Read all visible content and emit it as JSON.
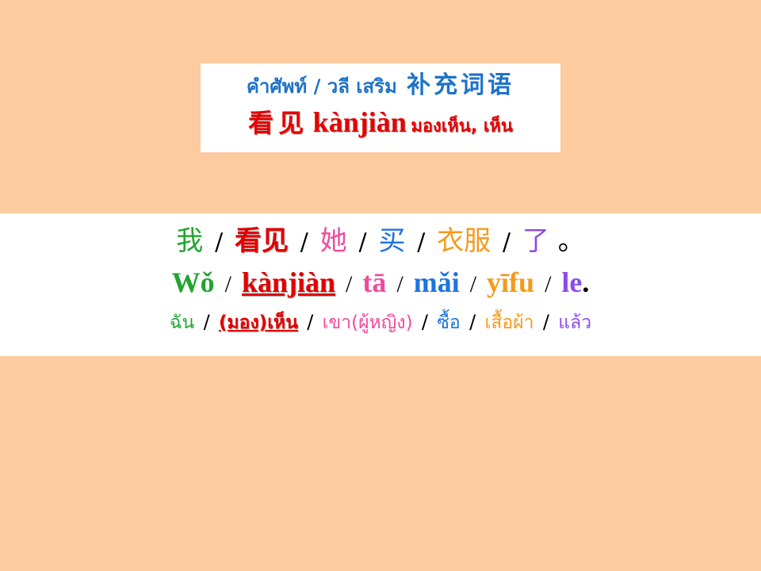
{
  "vocab": {
    "heading_thai": "คำศัพท์ / วลี เสริม",
    "heading_cn": "补充词语",
    "word_cn": "看见",
    "word_pinyin": "kànjiàn",
    "word_thai": "มองเห็น, เห็น"
  },
  "sentence": {
    "separator": "/",
    "hanzi": [
      {
        "text": "我",
        "color": "#22A52E"
      },
      {
        "text": "看见",
        "color": "#E00000"
      },
      {
        "text": "她",
        "color": "#F04A9E"
      },
      {
        "text": "买",
        "color": "#1E73E0"
      },
      {
        "text": "衣服",
        "color": "#F59A1B"
      },
      {
        "text": "了",
        "color": "#8E4BE8"
      }
    ],
    "hanzi_end": "。",
    "pinyin": [
      {
        "text": "Wǒ",
        "color": "#22A52E"
      },
      {
        "text": "kànjiàn",
        "color": "#E00000"
      },
      {
        "text": "tā",
        "color": "#F04A9E"
      },
      {
        "text": "mǎi",
        "color": "#1E73E0"
      },
      {
        "text": "yīfu",
        "color": "#F59A1B"
      },
      {
        "text": "le",
        "color": "#8E4BE8"
      }
    ],
    "pinyin_end": ".",
    "thai": [
      {
        "text": "ฉัน",
        "color": "#22A52E"
      },
      {
        "text": "(มอง)เห็น",
        "color": "#E00000"
      },
      {
        "text": "เขา(ผู้หญิง)",
        "color": "#F04A9E"
      },
      {
        "text": "ซื้อ",
        "color": "#1E73E0"
      },
      {
        "text": "เสื้อผ้า",
        "color": "#F59A1B"
      },
      {
        "text": "แล้ว",
        "color": "#8E4BE8"
      }
    ]
  },
  "colors": {
    "background": "#FCCB9F",
    "panel": "#FFFFFF",
    "heading": "#1E73C8",
    "keyword": "#E60000"
  }
}
